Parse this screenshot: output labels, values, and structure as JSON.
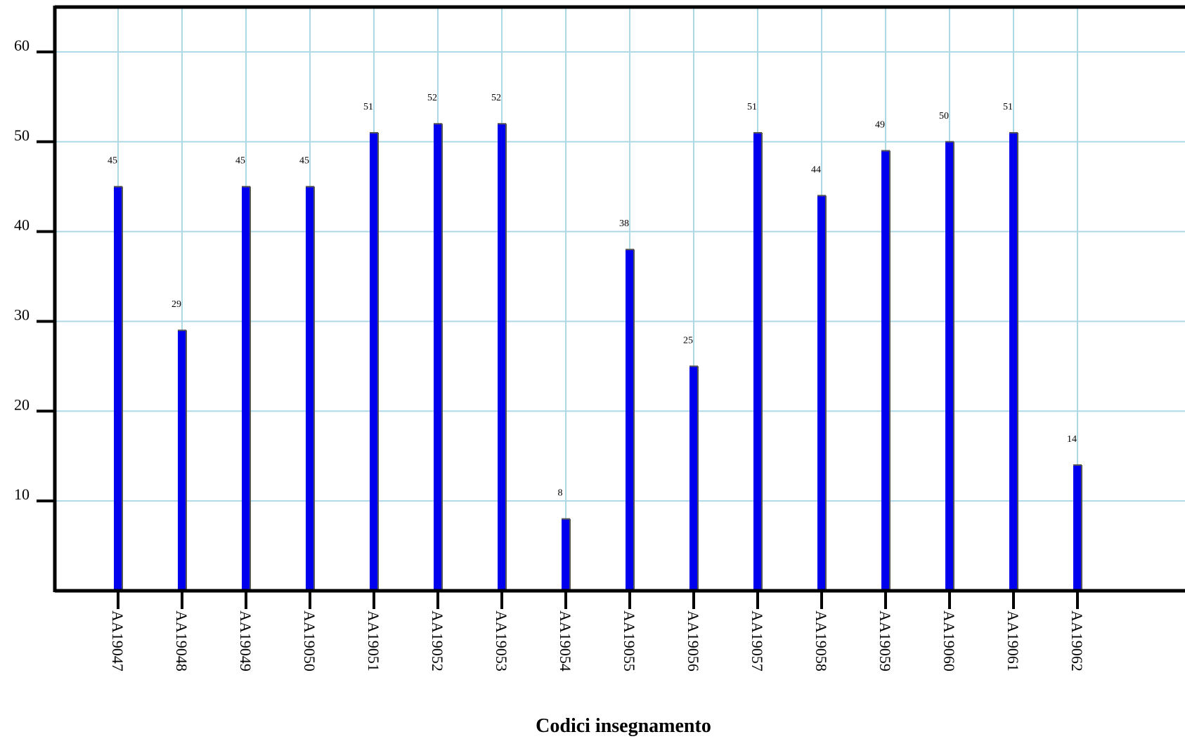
{
  "chart_data": {
    "type": "bar",
    "title": "",
    "xlabel": "Codici insegnamento",
    "ylabel": "",
    "categories": [
      "AA19047",
      "AA19048",
      "AA19049",
      "AA19050",
      "AA19051",
      "AA19052",
      "AA19053",
      "AA19054",
      "AA19055",
      "AA19056",
      "AA19057",
      "AA19058",
      "AA19059",
      "AA19060",
      "AA19061",
      "AA19062"
    ],
    "values": [
      45,
      29,
      45,
      45,
      51,
      52,
      52,
      8,
      38,
      25,
      51,
      44,
      49,
      50,
      51,
      14
    ],
    "ylim": [
      0,
      65
    ],
    "yticks": [
      10,
      20,
      30,
      40,
      50,
      60
    ],
    "grid": true,
    "legend": "none",
    "colors": {
      "bar": "#0000ee",
      "bar_edge": "#555555",
      "grid": "#add8e6",
      "axis": "#000000"
    }
  }
}
